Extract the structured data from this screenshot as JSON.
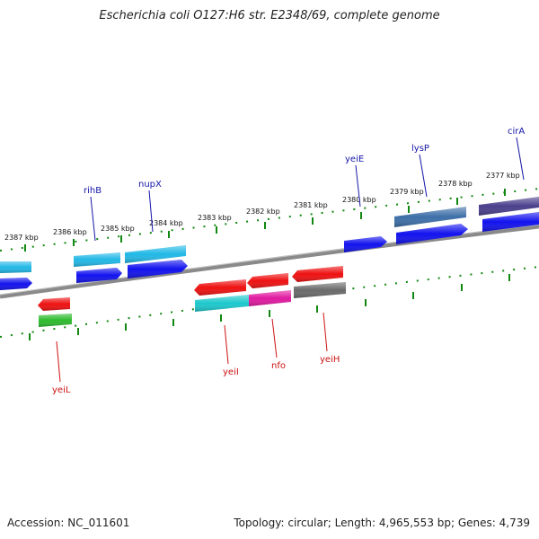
{
  "title": "Escherichia coli O127:H6 str. E2348/69, complete genome",
  "accession": "Accession: NC_011601",
  "summary": "Topology: circular; Length: 4,965,553 bp; Genes: 4,739",
  "colors": {
    "backbone": "#8a8a8a",
    "scale_ticks": "#118811",
    "forward_label": "#1515a8",
    "reverse_label": "#cc1111",
    "tick_label": "#111111"
  },
  "scale_labels": [
    "2387 kbp",
    "2386 kbp",
    "2385 kbp",
    "2384 kbp",
    "2383 kbp",
    "2382 kbp",
    "2381 kbp",
    "2380 kbp",
    "2379 kbp",
    "2378 kbp",
    "2377 kbp"
  ],
  "forward_genes": [
    "rihB",
    "nupX",
    "yeiE",
    "lysP",
    "cirA"
  ],
  "reverse_genes": [
    "yeiL",
    "yeiI",
    "nfo",
    "yeiH"
  ]
}
